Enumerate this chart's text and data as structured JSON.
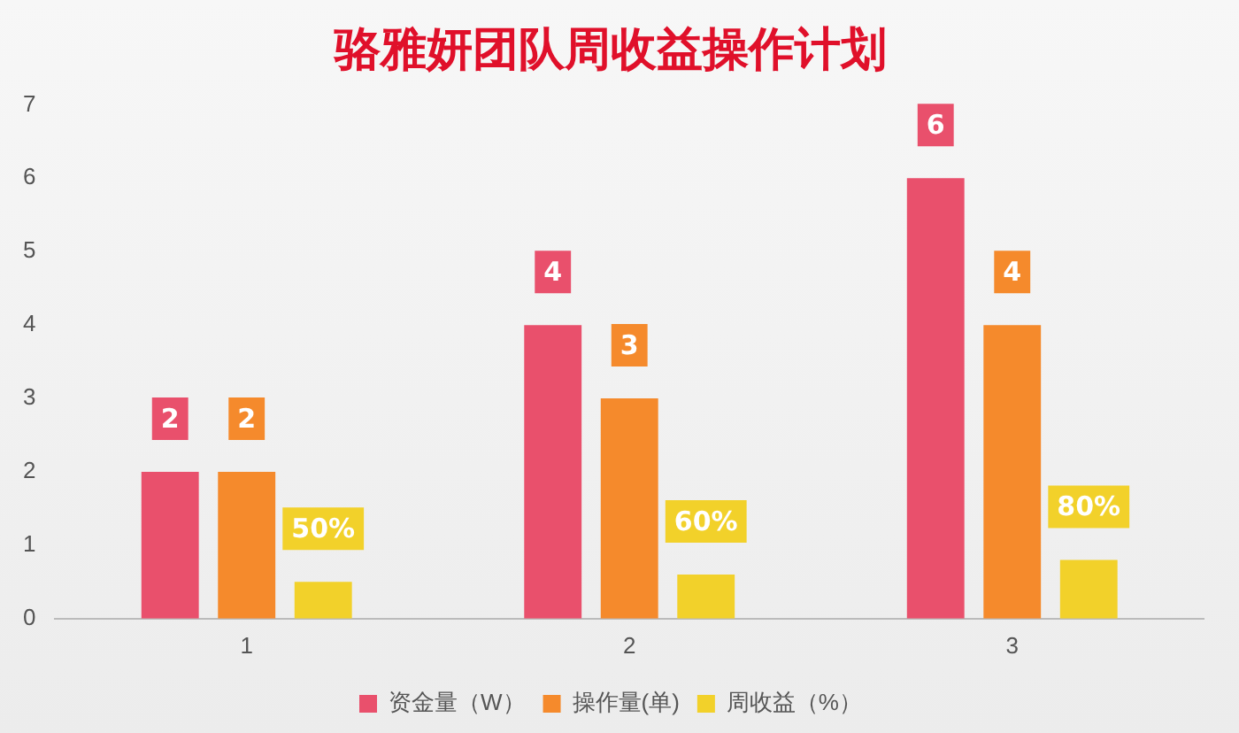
{
  "chart_data": {
    "type": "bar",
    "title": "骆雅妍团队周收益操作计划",
    "categories": [
      "1",
      "2",
      "3"
    ],
    "series": [
      {
        "name": "资金量（W）",
        "color": "#e9506c",
        "values": [
          2,
          4,
          6
        ]
      },
      {
        "name": "操作量(单)",
        "color": "#f58a2c",
        "values": [
          2,
          3,
          4
        ]
      },
      {
        "name": "周收益（%）",
        "color": "#f2d12a",
        "values": [
          0.5,
          0.6,
          0.8
        ],
        "value_labels": [
          "50%",
          "60%",
          "80%"
        ]
      }
    ],
    "ylim": [
      0,
      7
    ],
    "yticks": [
      0,
      1,
      2,
      3,
      4,
      5,
      6,
      7
    ],
    "grid": false,
    "legend": "bottom",
    "data_labels": true
  }
}
